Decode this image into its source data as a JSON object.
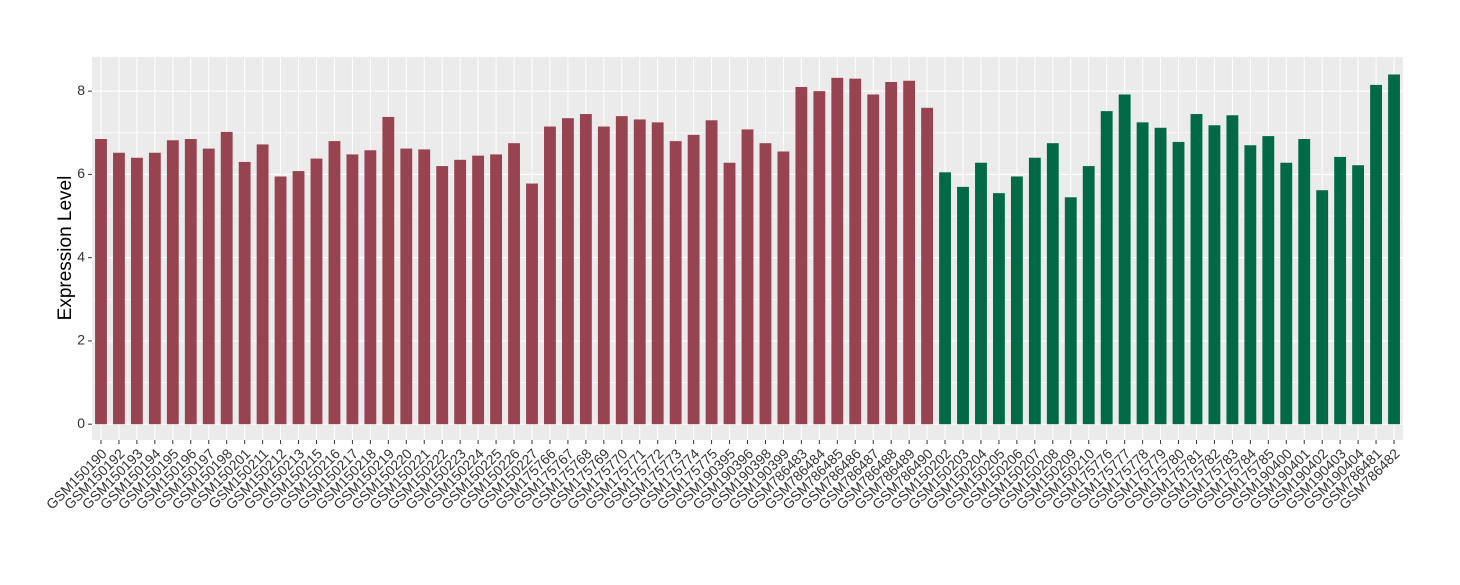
{
  "chart_data": {
    "type": "bar",
    "y_label": "Expression Level",
    "categories": [
      "GSM150190",
      "GSM150192",
      "GSM150193",
      "GSM150194",
      "GSM150195",
      "GSM150196",
      "GSM150197",
      "GSM150198",
      "GSM150201",
      "GSM150211",
      "GSM150212",
      "GSM150213",
      "GSM150215",
      "GSM150216",
      "GSM150217",
      "GSM150218",
      "GSM150219",
      "GSM150220",
      "GSM150221",
      "GSM150222",
      "GSM150223",
      "GSM150224",
      "GSM150225",
      "GSM150226",
      "GSM150227",
      "GSM175766",
      "GSM175767",
      "GSM175768",
      "GSM175769",
      "GSM175770",
      "GSM175771",
      "GSM175772",
      "GSM175773",
      "GSM175774",
      "GSM175775",
      "GSM190395",
      "GSM190396",
      "GSM190398",
      "GSM190399",
      "GSM786483",
      "GSM786484",
      "GSM786485",
      "GSM786486",
      "GSM786487",
      "GSM786488",
      "GSM786489",
      "GSM786490",
      "GSM150202",
      "GSM150203",
      "GSM150204",
      "GSM150205",
      "GSM150206",
      "GSM150207",
      "GSM150208",
      "GSM150209",
      "GSM150210",
      "GSM175776",
      "GSM175777",
      "GSM175778",
      "GSM175779",
      "GSM175780",
      "GSM175781",
      "GSM175782",
      "GSM175783",
      "GSM175784",
      "GSM175785",
      "GSM190400",
      "GSM190401",
      "GSM190402",
      "GSM190403",
      "GSM190404",
      "GSM786481",
      "GSM786482"
    ],
    "series": [
      {
        "color": "#984450",
        "values": [
          6.85,
          6.52,
          6.4,
          6.52,
          6.82,
          6.85,
          6.62,
          7.02,
          6.3,
          6.72,
          5.95,
          6.08,
          6.38,
          6.8,
          6.48,
          6.58,
          7.38,
          6.62,
          6.6,
          6.2,
          6.35,
          6.45,
          6.48,
          6.75,
          5.78,
          7.15,
          7.35,
          7.45,
          7.15,
          7.4,
          7.32,
          7.25,
          6.8,
          6.95,
          7.3,
          6.28,
          7.08,
          6.75,
          6.55,
          8.1,
          8.0,
          8.32,
          8.3,
          7.92,
          8.22,
          8.25,
          7.6,
          null,
          null,
          null,
          null,
          null,
          null,
          null,
          null,
          null,
          null,
          null,
          null,
          null,
          null,
          null,
          null,
          null,
          null,
          null,
          null,
          null,
          null,
          null,
          null,
          null,
          null
        ]
      },
      {
        "color": "#006a46",
        "values": [
          null,
          null,
          null,
          null,
          null,
          null,
          null,
          null,
          null,
          null,
          null,
          null,
          null,
          null,
          null,
          null,
          null,
          null,
          null,
          null,
          null,
          null,
          null,
          null,
          null,
          null,
          null,
          null,
          null,
          null,
          null,
          null,
          null,
          null,
          null,
          null,
          null,
          null,
          null,
          null,
          null,
          null,
          null,
          null,
          null,
          null,
          null,
          6.05,
          5.7,
          6.28,
          5.55,
          5.95,
          6.4,
          6.75,
          5.45,
          6.2,
          7.52,
          7.92,
          7.25,
          7.12,
          6.78,
          7.45,
          7.18,
          7.42,
          6.7,
          6.92,
          6.28,
          6.85,
          5.62,
          6.42,
          6.22,
          8.15,
          8.4
        ]
      }
    ],
    "ylim": [
      -0.38,
      8.82
    ],
    "yticks": [
      0,
      2,
      4,
      6,
      8
    ],
    "grid": true
  }
}
